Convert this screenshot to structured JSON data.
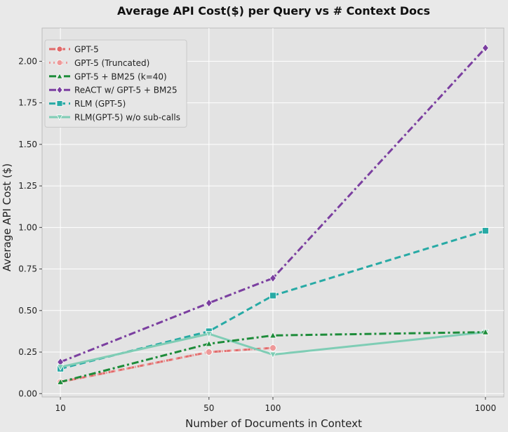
{
  "chart_data": {
    "type": "line",
    "title": "Average API Cost($) per Query vs # Context Docs",
    "xlabel": "Number of Documents in Context",
    "ylabel": "Average API Cost ($)",
    "x": [
      10,
      50,
      100,
      1000
    ],
    "x_ticks": [
      "10",
      "50",
      "100",
      "1000"
    ],
    "y_ticks": [
      "0.00",
      "0.25",
      "0.50",
      "0.75",
      "1.00",
      "1.25",
      "1.50",
      "1.75",
      "2.00"
    ],
    "ylim": [
      -0.02,
      2.2
    ],
    "x_scale": "log",
    "grid": true,
    "legend_position": "top-left",
    "series": [
      {
        "name": "GPT-5",
        "color": "#e06a6a",
        "dash": "dashed",
        "marker": "circle",
        "points": [
          [
            10,
            0.07
          ],
          [
            50,
            0.25
          ],
          [
            100,
            0.275
          ]
        ]
      },
      {
        "name": "GPT-5 (Truncated)",
        "color": "#ee9999",
        "dash": "dotted",
        "marker": "circle",
        "points": [
          [
            10,
            0.07
          ],
          [
            50,
            0.25
          ],
          [
            100,
            0.275
          ]
        ]
      },
      {
        "name": "GPT-5 + BM25 (k=40)",
        "color": "#1e8c3a",
        "dash": "dashdot",
        "marker": "triangle-up",
        "points": [
          [
            10,
            0.07
          ],
          [
            50,
            0.3
          ],
          [
            100,
            0.35
          ],
          [
            1000,
            0.37
          ]
        ]
      },
      {
        "name": "ReACT w/ GPT-5 + BM25",
        "color": "#7b3fa0",
        "dash": "dashdot",
        "marker": "diamond",
        "points": [
          [
            10,
            0.19
          ],
          [
            50,
            0.545
          ],
          [
            100,
            0.695
          ],
          [
            1000,
            2.08
          ]
        ]
      },
      {
        "name": "RLM (GPT-5)",
        "color": "#28aaa5",
        "dash": "dashed",
        "marker": "square",
        "points": [
          [
            10,
            0.15
          ],
          [
            50,
            0.375
          ],
          [
            100,
            0.59
          ],
          [
            1000,
            0.98
          ]
        ]
      },
      {
        "name": "RLM(GPT-5) w/o sub-calls",
        "color": "#7fcdb5",
        "dash": "solid",
        "marker": "triangle-down",
        "points": [
          [
            10,
            0.16
          ],
          [
            50,
            0.36
          ],
          [
            100,
            0.235
          ],
          [
            1000,
            0.37
          ]
        ]
      }
    ]
  }
}
